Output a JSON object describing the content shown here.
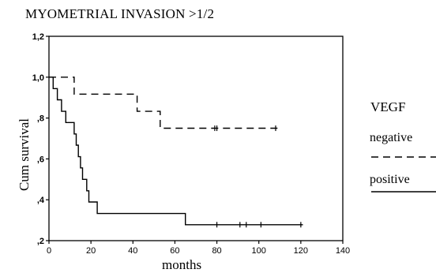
{
  "chart_data": {
    "type": "line",
    "title": "MYOMETRIAL INVASION >1/2",
    "xlabel": "months",
    "ylabel": "Cum survival",
    "xlim": [
      0,
      140
    ],
    "ylim": [
      0.2,
      1.2
    ],
    "x_ticks": [
      0,
      20,
      40,
      60,
      80,
      100,
      120,
      140
    ],
    "y_ticks": [
      0.2,
      0.4,
      0.6,
      0.8,
      1.0,
      1.2
    ],
    "y_tick_labels": [
      ",2",
      ",4",
      ",6",
      ",8",
      "1,0",
      "1,2"
    ],
    "legend_title": "VEGF",
    "legend_position": "right",
    "grid": false,
    "series": [
      {
        "name": "negative",
        "style": "dashed",
        "steps": [
          [
            0,
            1.0
          ],
          [
            12,
            1.0
          ],
          [
            12,
            0.917
          ],
          [
            42,
            0.917
          ],
          [
            42,
            0.833
          ],
          [
            53,
            0.833
          ],
          [
            53,
            0.75
          ],
          [
            109,
            0.75
          ]
        ],
        "censored": [
          [
            79,
            0.75
          ],
          [
            80,
            0.75
          ],
          [
            108,
            0.75
          ]
        ]
      },
      {
        "name": "positive",
        "style": "solid",
        "steps": [
          [
            0,
            1.0
          ],
          [
            2,
            1.0
          ],
          [
            2,
            0.944
          ],
          [
            4,
            0.944
          ],
          [
            4,
            0.889
          ],
          [
            6,
            0.889
          ],
          [
            6,
            0.833
          ],
          [
            8,
            0.833
          ],
          [
            8,
            0.778
          ],
          [
            12,
            0.778
          ],
          [
            12,
            0.722
          ],
          [
            13,
            0.722
          ],
          [
            13,
            0.667
          ],
          [
            14,
            0.667
          ],
          [
            14,
            0.611
          ],
          [
            15,
            0.611
          ],
          [
            15,
            0.556
          ],
          [
            16,
            0.556
          ],
          [
            16,
            0.5
          ],
          [
            18,
            0.5
          ],
          [
            18,
            0.444
          ],
          [
            19,
            0.444
          ],
          [
            19,
            0.389
          ],
          [
            23,
            0.389
          ],
          [
            23,
            0.333
          ],
          [
            65,
            0.333
          ],
          [
            65,
            0.278
          ],
          [
            121,
            0.278
          ]
        ],
        "censored": [
          [
            80,
            0.278
          ],
          [
            91,
            0.278
          ],
          [
            94,
            0.278
          ],
          [
            101,
            0.278
          ],
          [
            120,
            0.278
          ]
        ]
      }
    ]
  }
}
